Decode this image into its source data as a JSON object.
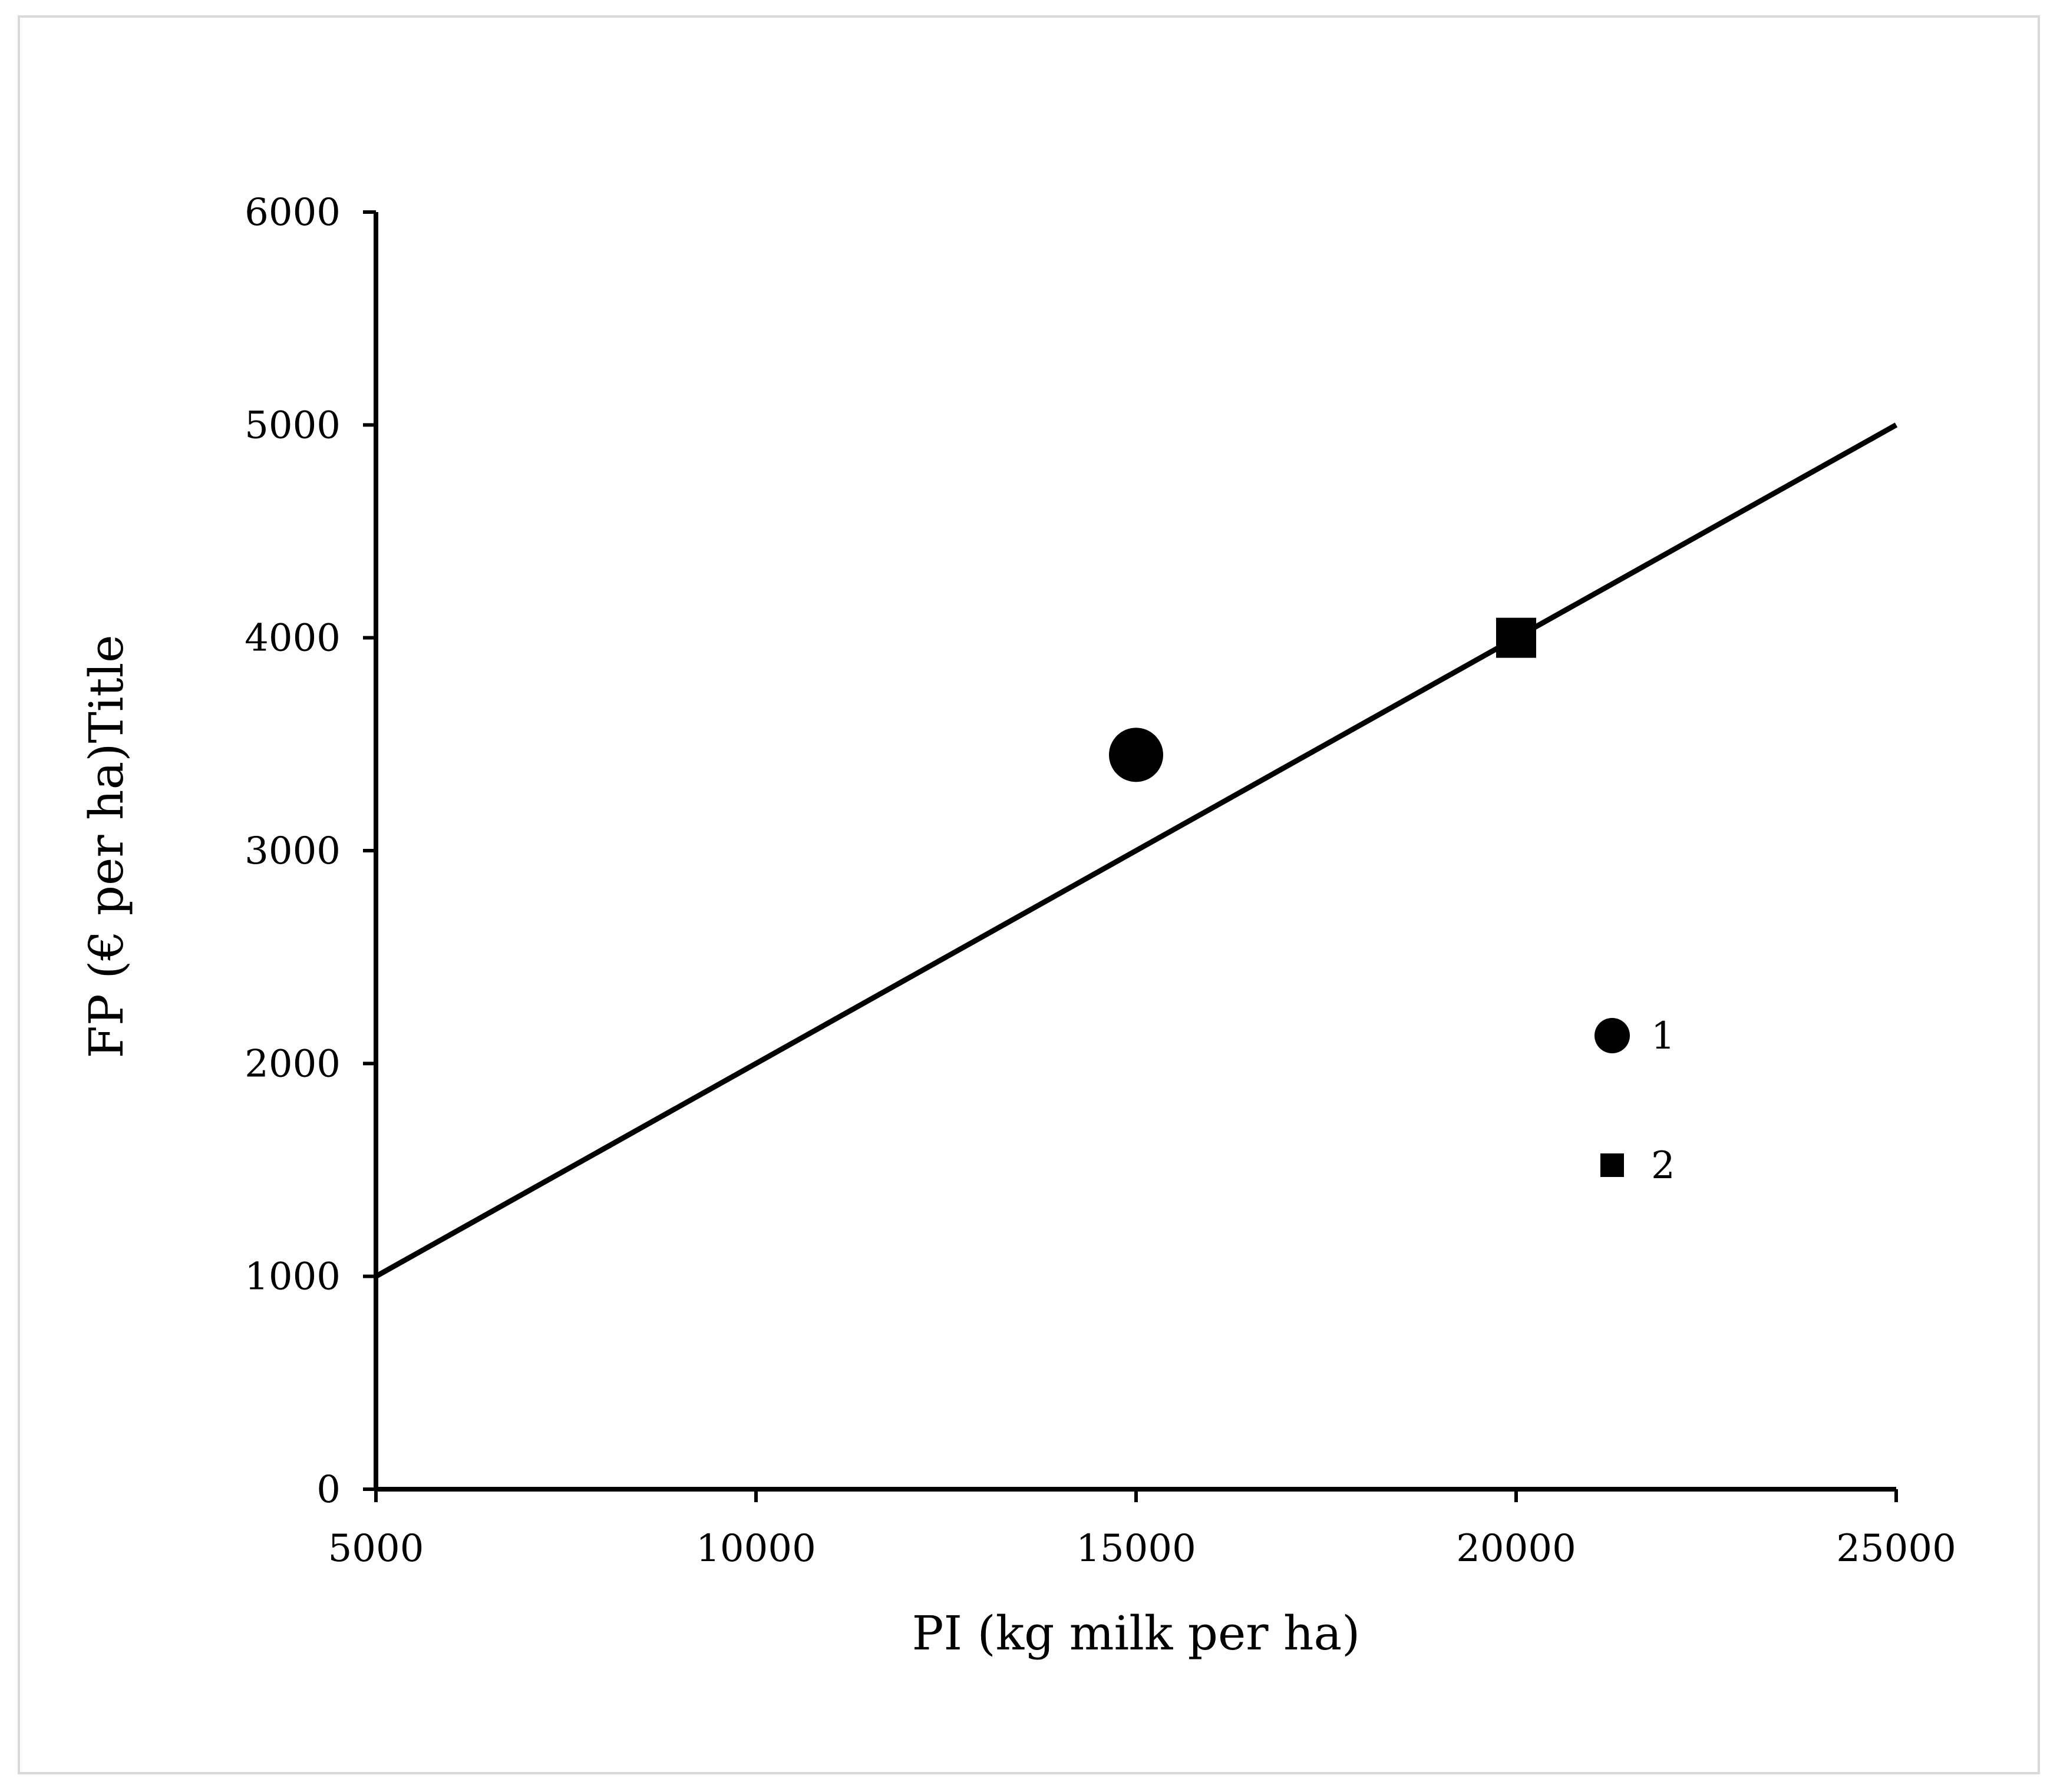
{
  "chart_data": {
    "type": "scatter",
    "xlabel": "PI (kg milk per ha)",
    "ylabel": "FP (€ per ha)Title",
    "xlim": [
      5000,
      25000
    ],
    "ylim": [
      0,
      6000
    ],
    "xticks": [
      "5000",
      "10000",
      "15000",
      "20000",
      "25000"
    ],
    "yticks": [
      "0",
      "1000",
      "2000",
      "3000",
      "4000",
      "5000",
      "6000"
    ],
    "grid": false,
    "legend_position": "right",
    "line": {
      "x": [
        5000,
        25000
      ],
      "y": [
        1000,
        5000
      ],
      "color": "#000000"
    },
    "series": [
      {
        "name": "1",
        "marker": "circle",
        "color": "#000000",
        "points": [
          {
            "x": 15000,
            "y": 3450
          }
        ]
      },
      {
        "name": "2",
        "marker": "square",
        "color": "#000000",
        "points": [
          {
            "x": 20000,
            "y": 4000
          }
        ]
      }
    ]
  }
}
